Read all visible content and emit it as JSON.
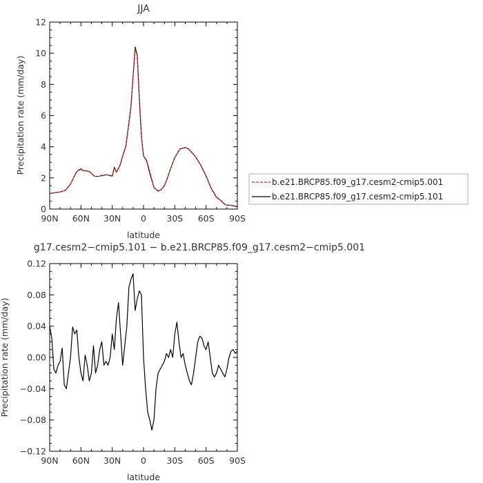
{
  "chart_data": [
    {
      "type": "line",
      "title": "JJA",
      "xlabel": "latitude",
      "ylabel": "Precipitation rate (mm/day)",
      "xlim": [
        90,
        -90
      ],
      "ylim": [
        0,
        12
      ],
      "xticks": [
        90,
        60,
        30,
        0,
        -30,
        -60,
        -90
      ],
      "xticklabels": [
        "90N",
        "60N",
        "30N",
        "0",
        "30S",
        "60S",
        "90S"
      ],
      "yticks": [
        0,
        2,
        4,
        6,
        8,
        10,
        12
      ],
      "yticklabels": [
        "0",
        "2",
        "4",
        "6",
        "8",
        "10",
        "12"
      ],
      "legend_position": "right",
      "series": [
        {
          "name": "b.e21.BRCP85.f09_g17.cesm2-cmip5.001",
          "color": "#d62020",
          "dash": "dashed",
          "x": [
            90,
            85,
            80,
            75,
            70,
            65,
            63,
            60,
            58,
            55,
            52,
            50,
            47,
            45,
            42,
            40,
            35,
            30,
            28,
            26,
            24,
            22,
            20,
            17,
            15,
            12,
            10,
            8,
            6,
            4,
            2,
            0,
            -3,
            -6,
            -10,
            -14,
            -17,
            -20,
            -23,
            -26,
            -30,
            -35,
            -40,
            -43,
            -46,
            -50,
            -55,
            -60,
            -65,
            -70,
            -75,
            -78,
            -80,
            -83,
            -85,
            -90
          ],
          "y": [
            1.0,
            1.05,
            1.1,
            1.2,
            1.6,
            2.3,
            2.45,
            2.55,
            2.45,
            2.45,
            2.4,
            2.3,
            2.1,
            2.1,
            2.1,
            2.15,
            2.2,
            2.1,
            2.65,
            2.35,
            2.6,
            2.9,
            3.4,
            4.0,
            5.0,
            6.6,
            8.5,
            10.3,
            9.8,
            7.0,
            4.6,
            3.4,
            3.15,
            2.4,
            1.4,
            1.15,
            1.25,
            1.5,
            2.0,
            2.6,
            3.3,
            3.85,
            3.95,
            3.85,
            3.65,
            3.35,
            2.8,
            2.1,
            1.3,
            0.75,
            0.5,
            0.3,
            0.25,
            0.25,
            0.22,
            0.15
          ]
        },
        {
          "name": "b.e21.BRCP85.f09_g17.cesm2-cmip5.101",
          "color": "#000000",
          "dash": "solid",
          "x": [
            90,
            85,
            80,
            75,
            70,
            65,
            63,
            60,
            58,
            55,
            52,
            50,
            47,
            45,
            42,
            40,
            35,
            30,
            28,
            26,
            24,
            22,
            20,
            17,
            15,
            12,
            10,
            8,
            6,
            4,
            2,
            0,
            -3,
            -6,
            -10,
            -14,
            -17,
            -20,
            -23,
            -26,
            -30,
            -35,
            -40,
            -43,
            -46,
            -50,
            -55,
            -60,
            -65,
            -70,
            -75,
            -78,
            -80,
            -83,
            -85,
            -90
          ],
          "y": [
            1.0,
            1.05,
            1.1,
            1.2,
            1.6,
            2.3,
            2.47,
            2.58,
            2.47,
            2.46,
            2.41,
            2.3,
            2.1,
            2.1,
            2.11,
            2.16,
            2.2,
            2.12,
            2.68,
            2.37,
            2.61,
            2.9,
            3.42,
            4.02,
            5.02,
            6.62,
            8.54,
            10.4,
            9.87,
            7.08,
            4.68,
            3.4,
            3.1,
            2.3,
            1.39,
            1.15,
            1.25,
            1.5,
            2.0,
            2.61,
            3.31,
            3.86,
            3.95,
            3.86,
            3.66,
            3.35,
            2.8,
            2.12,
            1.32,
            0.76,
            0.5,
            0.3,
            0.25,
            0.25,
            0.23,
            0.16
          ]
        }
      ]
    },
    {
      "type": "line",
      "title": "g17.cesm2−cmip5.101 − b.e21.BRCP85.f09_g17.cesm2−cmip5.001",
      "xlabel": "latitude",
      "ylabel": "Precipitation rate (mm/day)",
      "xlim": [
        90,
        -90
      ],
      "ylim": [
        -0.12,
        0.12
      ],
      "xticks": [
        90,
        60,
        30,
        0,
        -30,
        -60,
        -90
      ],
      "xticklabels": [
        "90N",
        "60N",
        "30N",
        "0",
        "30S",
        "60S",
        "90S"
      ],
      "yticks": [
        -0.12,
        -0.08,
        -0.04,
        0.0,
        0.04,
        0.08,
        0.12
      ],
      "yticklabels": [
        "−0.12",
        "−0.08",
        "−0.04",
        "0.00",
        "0.04",
        "0.08",
        "0.12"
      ],
      "series": [
        {
          "color": "#000000",
          "dash": "solid",
          "x": [
            90,
            88,
            86,
            84,
            82,
            80,
            78,
            76,
            74,
            72,
            70,
            68,
            66,
            64,
            62,
            60,
            58,
            56,
            54,
            52,
            50,
            48,
            46,
            44,
            42,
            40,
            38,
            36,
            34,
            32,
            30,
            28,
            26,
            24,
            22,
            20,
            18,
            16,
            14,
            12,
            10,
            8,
            6,
            4,
            2,
            0,
            -2,
            -4,
            -6,
            -8,
            -10,
            -12,
            -14,
            -16,
            -18,
            -20,
            -22,
            -24,
            -26,
            -28,
            -30,
            -32,
            -34,
            -36,
            -38,
            -40,
            -42,
            -44,
            -46,
            -48,
            -50,
            -52,
            -54,
            -56,
            -58,
            -60,
            -62,
            -64,
            -66,
            -68,
            -70,
            -72,
            -74,
            -76,
            -78,
            -80,
            -82,
            -84,
            -86,
            -88,
            -90
          ],
          "y": [
            0.04,
            0.025,
            -0.015,
            -0.02,
            -0.01,
            -0.005,
            0.012,
            -0.035,
            -0.04,
            -0.02,
            0.0,
            0.039,
            0.03,
            0.035,
            0.0,
            -0.02,
            -0.03,
            0.003,
            -0.01,
            -0.03,
            -0.02,
            0.015,
            -0.02,
            -0.01,
            0.01,
            0.02,
            -0.01,
            -0.005,
            -0.01,
            0.0,
            0.03,
            0.01,
            0.05,
            0.07,
            0.03,
            -0.01,
            0.015,
            0.04,
            0.09,
            0.1,
            0.107,
            0.06,
            0.075,
            0.085,
            0.08,
            0.0,
            -0.04,
            -0.07,
            -0.08,
            -0.093,
            -0.08,
            -0.04,
            -0.02,
            -0.015,
            -0.01,
            -0.005,
            0.005,
            0.0,
            0.01,
            0.0,
            0.03,
            0.045,
            0.02,
            0.0,
            0.005,
            -0.01,
            -0.02,
            -0.03,
            -0.035,
            -0.02,
            0.0,
            0.02,
            0.027,
            0.025,
            0.015,
            0.01,
            0.02,
            0.0,
            -0.02,
            -0.025,
            -0.02,
            -0.01,
            -0.015,
            -0.02,
            -0.025,
            -0.015,
            0.0,
            0.008,
            0.01,
            0.005,
            0.008
          ]
        }
      ]
    }
  ]
}
